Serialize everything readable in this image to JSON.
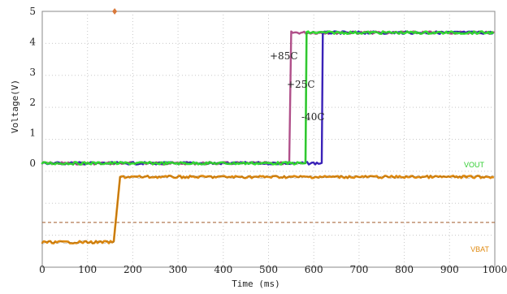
{
  "chart_data": {
    "type": "line",
    "xlabel": "Time (ms)",
    "ylabel": "Voltage(V)",
    "xlim": [
      0,
      1000
    ],
    "ylim": [
      0,
      5
    ],
    "x_ticks": [
      "0",
      "100",
      "200",
      "300",
      "400",
      "500",
      "600",
      "700",
      "800",
      "900",
      "1000"
    ],
    "y_ticks": [
      "0",
      "1",
      "2",
      "3",
      "4",
      "5"
    ],
    "grid": true,
    "grid_style": "dotted",
    "colors": {
      "vout_85": "#b0508a",
      "vout_25": "#33dd33",
      "vout_40": "#3a22b8",
      "vbat": "#e08a10",
      "reference": "#a05a2a",
      "marker": "#d8783a"
    },
    "series": [
      {
        "name": "+85C",
        "step_ms": 548,
        "low_v": 0,
        "high_v": 4.3
      },
      {
        "name": "+25C",
        "step_ms": 582,
        "low_v": 0,
        "high_v": 4.3
      },
      {
        "name": "-40C",
        "step_ms": 618,
        "low_v": 0,
        "high_v": 4.3
      },
      {
        "name": "VBAT",
        "step_ms": 160,
        "low_v": -2.6,
        "high_v": -0.45
      }
    ],
    "reference_line_v": -1.95,
    "channel_labels": [
      "VOUT",
      "VBAT"
    ],
    "annotations": [
      "+85C",
      "+25C",
      "-40C"
    ],
    "trigger_marker_ms": 160
  }
}
